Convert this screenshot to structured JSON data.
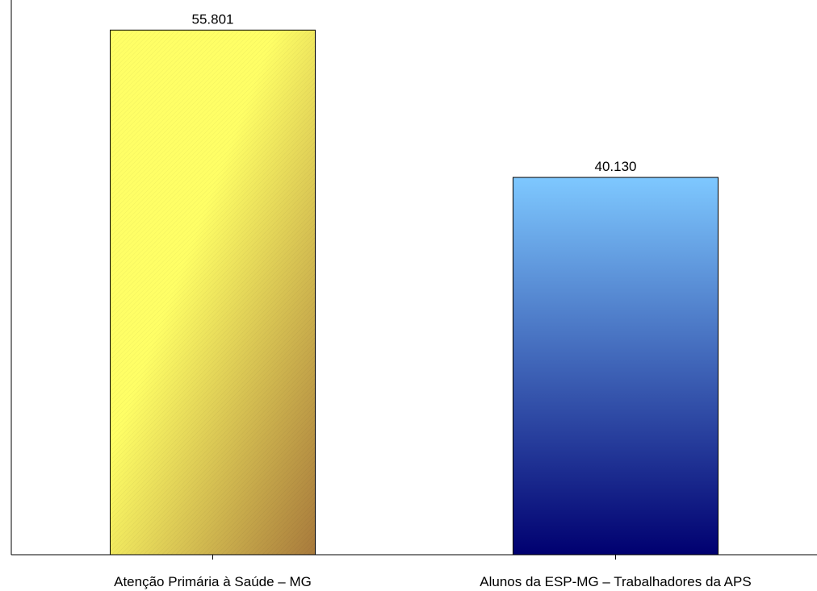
{
  "chart_data": {
    "type": "bar",
    "categories": [
      "Atenção Primária à Saúde – MG",
      "Alunos da ESP-MG – Trabalhadores da APS"
    ],
    "values": [
      55801,
      40130
    ],
    "value_labels": [
      "55.801",
      "40.130"
    ],
    "title": "",
    "xlabel": "",
    "ylabel": "",
    "ylim": [
      0,
      59000
    ],
    "grid": false,
    "legend": "none",
    "bar_colors": [
      {
        "top": "#ffff66",
        "bottom": "#a87a3c"
      },
      {
        "top": "#7ec8ff",
        "bottom": "#000070"
      }
    ]
  }
}
